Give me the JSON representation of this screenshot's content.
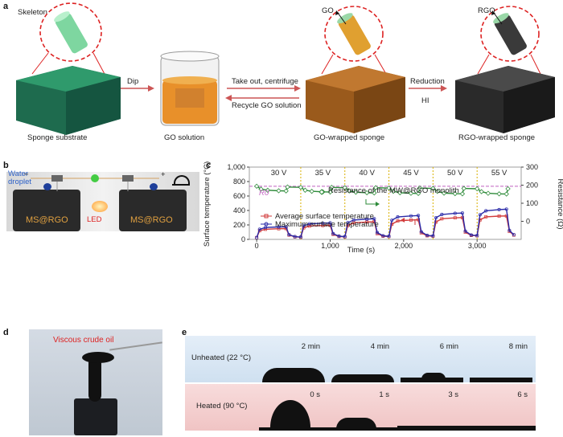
{
  "panels": {
    "a": "a",
    "b": "b",
    "c": "c",
    "d": "d",
    "e": "e"
  },
  "panel_a": {
    "skeleton_label": "Skeleton",
    "go_label": "GO",
    "rgo_label": "RGO",
    "dip": "Dip",
    "take_out": "Take out, centrifuge",
    "recycle": "Recycle GO solution",
    "reduction": "Reduction",
    "hi": "HI",
    "captions": [
      "Sponge substrate",
      "GO solution",
      "GO-wrapped sponge",
      "RGO-wrapped sponge"
    ]
  },
  "panel_b": {
    "water_droplet": "Water droplet",
    "minus": "−",
    "plus": "+",
    "led": "LED",
    "sample_left": "MS@RGO",
    "sample_right": "MS@RGO"
  },
  "panel_d": {
    "title": "Viscous crude oil"
  },
  "panel_e": {
    "rows": [
      {
        "label": "Unheated (22 °C)",
        "times": [
          "2 min",
          "4 min",
          "6 min",
          "8 min"
        ]
      },
      {
        "label": "Heated (90 °C)",
        "times": [
          "0 s",
          "1 s",
          "3 s",
          "6 s"
        ]
      }
    ]
  },
  "chart_data": {
    "type": "line",
    "xlabel": "Time (s)",
    "ylabel": "Surface temperature (°C)",
    "y2label": "Resistance (Ω)",
    "xlim": [
      -100,
      3600
    ],
    "ylim": [
      0,
      1000
    ],
    "y2lim": [
      -100,
      300
    ],
    "x_ticks": [
      0,
      1000,
      2000,
      3000
    ],
    "x_tick_labels": [
      "0",
      "1,000",
      "2,000",
      "3,000"
    ],
    "y_ticks": [
      0,
      200,
      400,
      600,
      800,
      1000
    ],
    "y_tick_labels": [
      "0",
      "200",
      "400",
      "600",
      "800",
      "1,000"
    ],
    "y2_ticks": [
      0,
      100,
      200,
      300
    ],
    "y2_tick_labels": [
      "0",
      "100",
      "200",
      "300"
    ],
    "voltage_labels": [
      "30 V",
      "35 V",
      "40 V",
      "45 V",
      "50 V",
      "55 V"
    ],
    "voltage_boundaries": [
      0,
      600,
      1200,
      1800,
      2400,
      3000,
      3600
    ],
    "r0_label": "R0",
    "r0_value": 194,
    "series": [
      {
        "name": "Resistance of the MW@RGO monolith",
        "axis": "right",
        "color": "#2e8b3a",
        "marker": "diamond",
        "x": [
          0,
          60,
          150,
          300,
          400,
          420,
          600,
          660,
          750,
          900,
          1000,
          1020,
          1200,
          1260,
          1350,
          1500,
          1600,
          1620,
          1800,
          1860,
          1950,
          2100,
          2200,
          2220,
          2400,
          2460,
          2550,
          2700,
          2800,
          2820,
          3000,
          3060,
          3150,
          3300,
          3400,
          3420
        ],
        "y": [
          194,
          178,
          172,
          169,
          168,
          190,
          188,
          172,
          166,
          163,
          162,
          188,
          186,
          168,
          161,
          158,
          157,
          186,
          184,
          166,
          158,
          155,
          154,
          184,
          182,
          165,
          156,
          153,
          152,
          182,
          180,
          164,
          155,
          152,
          151,
          180
        ]
      },
      {
        "name": "Average surface temperature",
        "axis": "left",
        "color": "#d23a3a",
        "marker": "square",
        "x": [
          0,
          40,
          120,
          300,
          400,
          440,
          520,
          600,
          640,
          720,
          900,
          1000,
          1040,
          1120,
          1200,
          1240,
          1320,
          1500,
          1600,
          1640,
          1720,
          1800,
          1840,
          1920,
          2100,
          2200,
          2240,
          2320,
          2400,
          2440,
          2520,
          2700,
          2800,
          2840,
          2920,
          3000,
          3040,
          3120,
          3300,
          3400,
          3440,
          3500
        ],
        "y": [
          25,
          120,
          140,
          148,
          150,
          60,
          35,
          30,
          160,
          185,
          192,
          195,
          70,
          40,
          35,
          190,
          230,
          240,
          245,
          80,
          45,
          40,
          210,
          255,
          268,
          272,
          90,
          50,
          45,
          240,
          285,
          298,
          302,
          100,
          55,
          50,
          270,
          312,
          322,
          325,
          110,
          60
        ]
      },
      {
        "name": "Maximum surface temperature",
        "axis": "left",
        "color": "#2a2aa8",
        "marker": "circle",
        "x": [
          0,
          40,
          120,
          300,
          400,
          440,
          520,
          600,
          640,
          720,
          900,
          1000,
          1040,
          1120,
          1200,
          1240,
          1320,
          1500,
          1600,
          1640,
          1720,
          1800,
          1840,
          1920,
          2100,
          2200,
          2240,
          2320,
          2400,
          2440,
          2520,
          2700,
          2800,
          2840,
          2920,
          3000,
          3040,
          3120,
          3300,
          3400,
          3440,
          3500
        ],
        "y": [
          25,
          140,
          165,
          172,
          175,
          65,
          38,
          32,
          190,
          215,
          225,
          228,
          80,
          45,
          38,
          230,
          268,
          280,
          285,
          95,
          50,
          42,
          265,
          310,
          325,
          330,
          105,
          55,
          48,
          300,
          345,
          360,
          365,
          115,
          60,
          52,
          340,
          395,
          412,
          418,
          125,
          65
        ]
      }
    ],
    "colors": {
      "grid_dotted": "#d9b000",
      "r0_line": "#c060c0",
      "arrow": "#2e8b3a"
    }
  }
}
